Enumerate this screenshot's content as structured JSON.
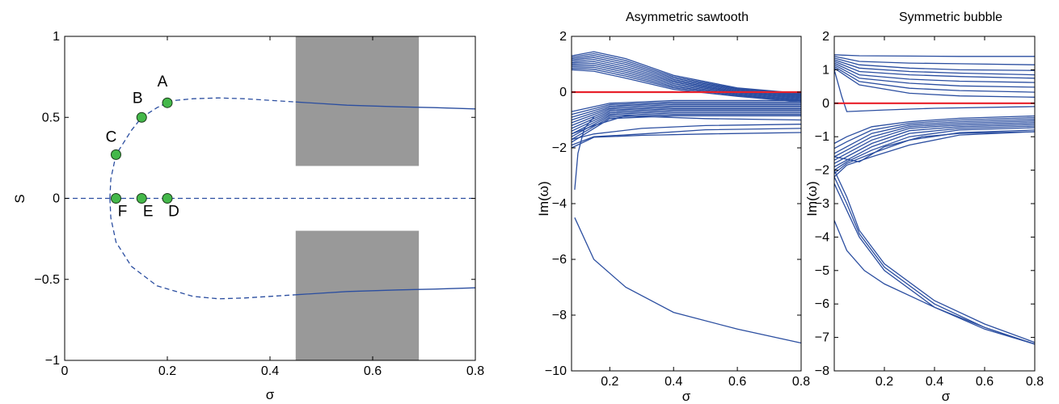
{
  "chart_data": [
    {
      "type": "line",
      "xlabel": "σ",
      "ylabel": "S",
      "xlim": [
        0,
        0.8
      ],
      "ylim": [
        -1,
        1
      ],
      "xticks": [
        "0",
        "0.2",
        "0.4",
        "0.6",
        "0.8"
      ],
      "yticks": [
        "−1",
        "−0.5",
        "0",
        "0.5",
        "1"
      ],
      "grid": false,
      "series": [
        {
          "style": "dashed",
          "x": [
            0.2,
            0.25,
            0.3,
            0.35,
            0.4,
            0.45
          ],
          "y": [
            0.6,
            0.615,
            0.62,
            0.615,
            0.605,
            0.595
          ]
        },
        {
          "style": "solid",
          "x": [
            0.45,
            0.55,
            0.65,
            0.72,
            0.8
          ],
          "y": [
            0.595,
            0.575,
            0.565,
            0.56,
            0.552
          ]
        },
        {
          "style": "dashed",
          "x": [
            0.088,
            0.09,
            0.1,
            0.13,
            0.15,
            0.18,
            0.2
          ],
          "y": [
            0.0,
            0.12,
            0.27,
            0.42,
            0.5,
            0.56,
            0.59
          ]
        },
        {
          "style": "dashed",
          "x": [
            0.0,
            0.8
          ],
          "y": [
            0.0,
            0.0
          ]
        },
        {
          "style": "dashed",
          "x": [
            0.088,
            0.09,
            0.1,
            0.13,
            0.18,
            0.25,
            0.3,
            0.35,
            0.45
          ],
          "y": [
            0.0,
            -0.12,
            -0.27,
            -0.42,
            -0.54,
            -0.605,
            -0.62,
            -0.615,
            -0.595
          ]
        },
        {
          "style": "solid",
          "x": [
            0.45,
            0.55,
            0.65,
            0.72,
            0.8
          ],
          "y": [
            -0.595,
            -0.575,
            -0.565,
            -0.56,
            -0.552
          ]
        }
      ],
      "shaded_regions": [
        {
          "x": [
            0.45,
            0.69
          ],
          "y": [
            0.2,
            1.0
          ]
        },
        {
          "x": [
            0.45,
            0.69
          ],
          "y": [
            -1.0,
            -0.2
          ]
        }
      ],
      "points": [
        {
          "label": "A",
          "x": 0.2,
          "y": 0.59
        },
        {
          "label": "B",
          "x": 0.15,
          "y": 0.5
        },
        {
          "label": "C",
          "x": 0.1,
          "y": 0.27
        },
        {
          "label": "D",
          "x": 0.2,
          "y": 0.0
        },
        {
          "label": "E",
          "x": 0.15,
          "y": 0.0
        },
        {
          "label": "F",
          "x": 0.1,
          "y": 0.0
        }
      ]
    },
    {
      "type": "line",
      "title": "Asymmetric sawtooth",
      "xlabel": "σ",
      "ylabel": "Im(ω)",
      "xlim": [
        0.08,
        0.8
      ],
      "ylim": [
        -10,
        2
      ],
      "xticks": [
        "0.2",
        "0.4",
        "0.6",
        "0.8"
      ],
      "yticks": [
        "−10",
        "−8",
        "−6",
        "−4",
        "−2",
        "0",
        "2"
      ],
      "grid": false,
      "reference_line_y": 0,
      "series": [
        {
          "x": [
            0.08,
            0.15,
            0.25,
            0.4,
            0.6,
            0.8
          ],
          "y": [
            1.3,
            1.45,
            1.2,
            0.6,
            0.15,
            -0.05
          ]
        },
        {
          "x": [
            0.08,
            0.15,
            0.25,
            0.4,
            0.6,
            0.8
          ],
          "y": [
            1.25,
            1.38,
            1.13,
            0.55,
            0.12,
            -0.08
          ]
        },
        {
          "x": [
            0.08,
            0.15,
            0.25,
            0.4,
            0.6,
            0.8
          ],
          "y": [
            1.2,
            1.31,
            1.06,
            0.5,
            0.09,
            -0.11
          ]
        },
        {
          "x": [
            0.08,
            0.15,
            0.25,
            0.4,
            0.6,
            0.8
          ],
          "y": [
            1.15,
            1.24,
            0.99,
            0.45,
            0.06,
            -0.14
          ]
        },
        {
          "x": [
            0.08,
            0.15,
            0.25,
            0.4,
            0.6,
            0.8
          ],
          "y": [
            1.1,
            1.17,
            0.92,
            0.4,
            0.03,
            -0.17
          ]
        },
        {
          "x": [
            0.08,
            0.15,
            0.25,
            0.4,
            0.6,
            0.8
          ],
          "y": [
            1.05,
            1.1,
            0.85,
            0.35,
            0.0,
            -0.2
          ]
        },
        {
          "x": [
            0.08,
            0.15,
            0.25,
            0.4,
            0.6,
            0.8
          ],
          "y": [
            1.0,
            1.03,
            0.78,
            0.3,
            -0.03,
            -0.23
          ]
        },
        {
          "x": [
            0.08,
            0.15,
            0.25,
            0.4,
            0.6,
            0.8
          ],
          "y": [
            0.95,
            0.96,
            0.71,
            0.25,
            -0.06,
            -0.26
          ]
        },
        {
          "x": [
            0.08,
            0.15,
            0.25,
            0.4,
            0.6,
            0.8
          ],
          "y": [
            0.9,
            0.89,
            0.64,
            0.2,
            -0.09,
            -0.29
          ]
        },
        {
          "x": [
            0.08,
            0.15,
            0.25,
            0.4,
            0.6,
            0.8
          ],
          "y": [
            0.85,
            0.82,
            0.57,
            0.15,
            -0.12,
            -0.32
          ]
        },
        {
          "x": [
            0.08,
            0.15,
            0.25,
            0.4,
            0.6,
            0.8
          ],
          "y": [
            0.8,
            0.75,
            0.5,
            0.1,
            -0.15,
            -0.35
          ]
        },
        {
          "x": [
            0.08,
            0.2,
            0.4,
            0.6,
            0.8
          ],
          "y": [
            -0.7,
            -0.4,
            -0.3,
            -0.3,
            -0.3
          ]
        },
        {
          "x": [
            0.08,
            0.2,
            0.4,
            0.6,
            0.8
          ],
          "y": [
            -0.8,
            -0.45,
            -0.35,
            -0.35,
            -0.35
          ]
        },
        {
          "x": [
            0.08,
            0.2,
            0.4,
            0.6,
            0.8
          ],
          "y": [
            -0.9,
            -0.5,
            -0.4,
            -0.4,
            -0.4
          ]
        },
        {
          "x": [
            0.08,
            0.2,
            0.4,
            0.6,
            0.8
          ],
          "y": [
            -1.0,
            -0.55,
            -0.45,
            -0.45,
            -0.45
          ]
        },
        {
          "x": [
            0.08,
            0.2,
            0.4,
            0.6,
            0.8
          ],
          "y": [
            -1.1,
            -0.6,
            -0.5,
            -0.5,
            -0.5
          ]
        },
        {
          "x": [
            0.08,
            0.2,
            0.4,
            0.6,
            0.8
          ],
          "y": [
            -1.2,
            -0.65,
            -0.55,
            -0.55,
            -0.55
          ]
        },
        {
          "x": [
            0.08,
            0.2,
            0.4,
            0.6,
            0.8
          ],
          "y": [
            -1.3,
            -0.7,
            -0.6,
            -0.6,
            -0.6
          ]
        },
        {
          "x": [
            0.08,
            0.2,
            0.4,
            0.6,
            0.8
          ],
          "y": [
            -1.4,
            -0.75,
            -0.65,
            -0.65,
            -0.65
          ]
        },
        {
          "x": [
            0.08,
            0.2,
            0.4,
            0.6,
            0.8
          ],
          "y": [
            -1.5,
            -0.8,
            -0.7,
            -0.7,
            -0.7
          ]
        },
        {
          "x": [
            0.08,
            0.2,
            0.4,
            0.6,
            0.8
          ],
          "y": [
            -1.6,
            -0.85,
            -0.75,
            -0.75,
            -0.75
          ]
        },
        {
          "x": [
            0.08,
            0.2,
            0.4,
            0.6,
            0.8
          ],
          "y": [
            -1.7,
            -0.9,
            -0.8,
            -0.8,
            -0.8
          ]
        },
        {
          "x": [
            0.08,
            0.2,
            0.4,
            0.6,
            0.8
          ],
          "y": [
            -1.8,
            -0.95,
            -0.85,
            -0.85,
            -0.85
          ]
        },
        {
          "x": [
            0.08,
            0.15,
            0.25,
            0.5,
            0.8
          ],
          "y": [
            -1.5,
            -1.2,
            -0.85,
            -0.95,
            -1.0
          ]
        },
        {
          "x": [
            0.08,
            0.15,
            0.3,
            0.5,
            0.8
          ],
          "y": [
            -1.7,
            -1.5,
            -1.3,
            -1.2,
            -1.15
          ]
        },
        {
          "x": [
            0.08,
            0.15,
            0.3,
            0.5,
            0.8
          ],
          "y": [
            -1.9,
            -1.6,
            -1.5,
            -1.35,
            -1.3
          ]
        },
        {
          "x": [
            0.08,
            0.15,
            0.3,
            0.5,
            0.8
          ],
          "y": [
            -2.0,
            -1.62,
            -1.55,
            -1.5,
            -1.45
          ]
        },
        {
          "x": [
            0.09,
            0.1,
            0.12,
            0.15
          ],
          "y": [
            -3.5,
            -2.2,
            -1.3,
            -0.9
          ]
        },
        {
          "x": [
            0.09,
            0.15,
            0.25,
            0.4,
            0.6,
            0.8
          ],
          "y": [
            -4.5,
            -6.0,
            -7.0,
            -7.9,
            -8.5,
            -9.0
          ]
        }
      ]
    },
    {
      "type": "line",
      "title": "Symmetric bubble",
      "xlabel": "σ",
      "ylabel": "Im(ω)",
      "xlim": [
        0.0,
        0.8
      ],
      "ylim": [
        -8,
        2
      ],
      "xticks": [
        "0.2",
        "0.4",
        "0.6",
        "0.8"
      ],
      "yticks": [
        "−8",
        "−7",
        "−6",
        "−5",
        "−4",
        "−3",
        "−2",
        "−1",
        "0",
        "1",
        "2"
      ],
      "grid": false,
      "reference_line_y": 0,
      "series": [
        {
          "x": [
            0.0,
            0.1,
            0.3,
            0.5,
            0.8
          ],
          "y": [
            1.45,
            1.42,
            1.41,
            1.4,
            1.4
          ]
        },
        {
          "x": [
            0.0,
            0.1,
            0.3,
            0.5,
            0.8
          ],
          "y": [
            1.4,
            1.25,
            1.2,
            1.18,
            1.15
          ]
        },
        {
          "x": [
            0.0,
            0.1,
            0.3,
            0.5,
            0.8
          ],
          "y": [
            1.35,
            1.15,
            1.05,
            1.0,
            0.98
          ]
        },
        {
          "x": [
            0.0,
            0.1,
            0.3,
            0.5,
            0.8
          ],
          "y": [
            1.3,
            1.05,
            0.95,
            0.9,
            0.85
          ]
        },
        {
          "x": [
            0.0,
            0.1,
            0.3,
            0.5,
            0.8
          ],
          "y": [
            1.25,
            0.95,
            0.85,
            0.8,
            0.75
          ]
        },
        {
          "x": [
            0.0,
            0.1,
            0.3,
            0.5,
            0.8
          ],
          "y": [
            1.2,
            0.85,
            0.72,
            0.66,
            0.62
          ]
        },
        {
          "x": [
            0.0,
            0.1,
            0.3,
            0.5,
            0.8
          ],
          "y": [
            1.15,
            0.75,
            0.6,
            0.52,
            0.48
          ]
        },
        {
          "x": [
            0.0,
            0.1,
            0.3,
            0.5,
            0.8
          ],
          "y": [
            1.1,
            0.65,
            0.45,
            0.38,
            0.33
          ]
        },
        {
          "x": [
            0.0,
            0.1,
            0.3,
            0.5,
            0.8
          ],
          "y": [
            1.05,
            0.55,
            0.3,
            0.22,
            0.18
          ]
        },
        {
          "x": [
            0.0,
            0.03,
            0.05,
            0.2,
            0.4,
            0.8
          ],
          "y": [
            1.0,
            0.2,
            -0.25,
            -0.2,
            -0.15,
            -0.1
          ]
        },
        {
          "x": [
            0.0,
            0.05,
            0.15,
            0.3,
            0.5,
            0.8
          ],
          "y": [
            -1.2,
            -1.0,
            -0.7,
            -0.55,
            -0.45,
            -0.38
          ]
        },
        {
          "x": [
            0.0,
            0.05,
            0.15,
            0.3,
            0.5,
            0.8
          ],
          "y": [
            -1.35,
            -1.15,
            -0.8,
            -0.6,
            -0.5,
            -0.43
          ]
        },
        {
          "x": [
            0.0,
            0.05,
            0.15,
            0.3,
            0.5,
            0.8
          ],
          "y": [
            -1.5,
            -1.3,
            -0.9,
            -0.65,
            -0.55,
            -0.48
          ]
        },
        {
          "x": [
            0.0,
            0.05,
            0.15,
            0.3,
            0.5,
            0.8
          ],
          "y": [
            -1.6,
            -1.4,
            -1.0,
            -0.7,
            -0.6,
            -0.53
          ]
        },
        {
          "x": [
            0.0,
            0.05,
            0.15,
            0.3,
            0.5,
            0.8
          ],
          "y": [
            -1.7,
            -1.5,
            -1.1,
            -0.75,
            -0.65,
            -0.58
          ]
        },
        {
          "x": [
            0.0,
            0.05,
            0.15,
            0.3,
            0.5,
            0.8
          ],
          "y": [
            -1.8,
            -1.6,
            -1.2,
            -0.82,
            -0.7,
            -0.63
          ]
        },
        {
          "x": [
            0.0,
            0.05,
            0.15,
            0.3,
            0.5,
            0.8
          ],
          "y": [
            -1.9,
            -1.7,
            -1.3,
            -0.9,
            -0.75,
            -0.68
          ]
        },
        {
          "x": [
            0.0,
            0.05,
            0.15,
            0.3,
            0.5,
            0.8
          ],
          "y": [
            -2.0,
            -1.75,
            -1.4,
            -1.0,
            -0.8,
            -0.73
          ]
        },
        {
          "x": [
            0.0,
            0.05,
            0.15,
            0.3,
            0.5,
            0.8
          ],
          "y": [
            -2.1,
            -1.8,
            -1.5,
            -1.1,
            -0.88,
            -0.8
          ]
        },
        {
          "x": [
            0.0,
            0.05,
            0.15,
            0.3,
            0.5,
            0.8
          ],
          "y": [
            -2.2,
            -1.85,
            -1.6,
            -1.25,
            -0.95,
            -0.85
          ]
        },
        {
          "x": [
            0.0,
            0.1,
            0.2,
            0.35,
            0.5,
            0.8
          ],
          "y": [
            -1.6,
            -1.75,
            -1.3,
            -1.0,
            -0.9,
            -0.85
          ]
        },
        {
          "x": [
            0.0,
            0.05,
            0.1,
            0.2,
            0.4,
            0.6,
            0.8
          ],
          "y": [
            -2.0,
            -2.8,
            -3.8,
            -4.8,
            -5.9,
            -6.6,
            -7.15
          ]
        },
        {
          "x": [
            0.0,
            0.05,
            0.1,
            0.2,
            0.4,
            0.6,
            0.8
          ],
          "y": [
            -2.2,
            -3.0,
            -3.9,
            -4.9,
            -6.0,
            -6.7,
            -7.2
          ]
        },
        {
          "x": [
            0.0,
            0.05,
            0.1,
            0.2,
            0.4,
            0.6,
            0.8
          ],
          "y": [
            -2.4,
            -3.2,
            -4.0,
            -5.0,
            -6.1,
            -6.75,
            -7.2
          ]
        },
        {
          "x": [
            0.0,
            0.05,
            0.12,
            0.2,
            0.4,
            0.6,
            0.8
          ],
          "y": [
            -3.5,
            -4.4,
            -5.0,
            -5.4,
            -6.1,
            -6.7,
            -7.2
          ]
        }
      ]
    }
  ]
}
